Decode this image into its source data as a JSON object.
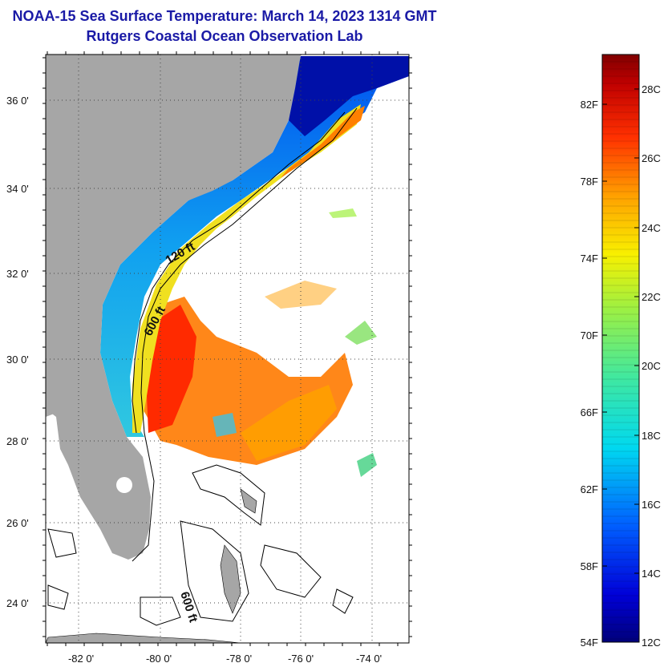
{
  "title": "NOAA-15 Sea Surface Temperature:  March 14, 2023 1314 GMT",
  "subtitle": "Rutgers Coastal Ocean Observation Lab",
  "colors": {
    "title": "#1a1aa6",
    "land": "#a6a6a6",
    "frame": "#000000"
  },
  "map": {
    "lat_labels": [
      "36 0'",
      "34 0'",
      "32 0'",
      "30 0'",
      "28 0'",
      "26 0'",
      "24 0'"
    ],
    "lon_labels": [
      "-82 0'",
      "-80 0'",
      "-78 0'",
      "-76 0'",
      "-74 0'"
    ],
    "contour_labels": [
      "120 ft",
      "600 ft",
      "600 ft"
    ]
  },
  "colorbar": {
    "fahrenheit_labels": [
      "82F",
      "78F",
      "74F",
      "70F",
      "66F",
      "62F",
      "58F",
      "54F"
    ],
    "celsius_labels": [
      "28C",
      "26C",
      "24C",
      "22C",
      "20C",
      "18C",
      "16C",
      "14C",
      "12C"
    ],
    "range_c": [
      12,
      29
    ]
  }
}
